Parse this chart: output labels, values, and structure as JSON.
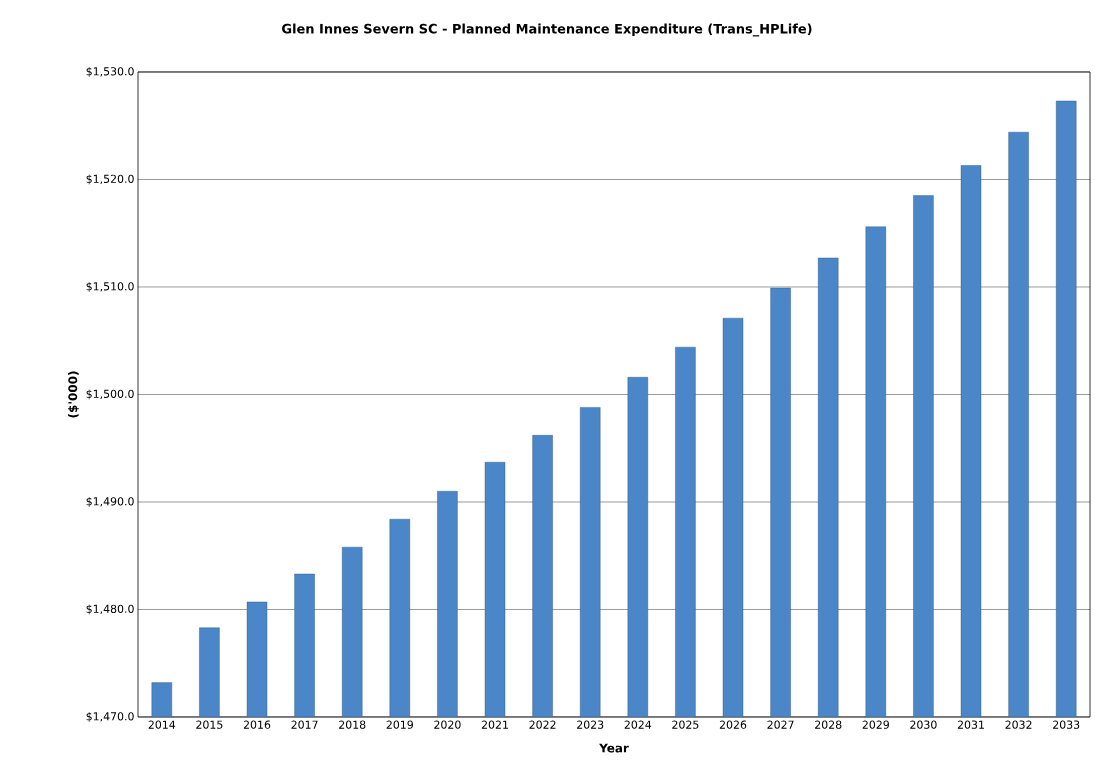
{
  "chart_data": {
    "type": "bar",
    "title": "Glen Innes Severn SC - Planned Maintenance Expenditure (Trans_HPLife)",
    "xlabel": "Year",
    "ylabel": "($'000)",
    "categories": [
      "2014",
      "2015",
      "2016",
      "2017",
      "2018",
      "2019",
      "2020",
      "2021",
      "2022",
      "2023",
      "2024",
      "2025",
      "2026",
      "2027",
      "2028",
      "2029",
      "2030",
      "2031",
      "2032",
      "2033"
    ],
    "values": [
      1473.2,
      1478.3,
      1480.7,
      1483.3,
      1485.8,
      1488.4,
      1491.0,
      1493.7,
      1496.2,
      1498.8,
      1501.6,
      1504.4,
      1507.1,
      1509.9,
      1512.7,
      1515.6,
      1518.5,
      1521.3,
      1524.4,
      1527.3
    ],
    "color": "#4a86c8",
    "ylim": [
      1470,
      1530
    ],
    "yticks": [
      {
        "value": 1470,
        "label": "$1,470.0"
      },
      {
        "value": 1480,
        "label": "$1,480.0"
      },
      {
        "value": 1490,
        "label": "$1,490.0"
      },
      {
        "value": 1500,
        "label": "$1,500.0"
      },
      {
        "value": 1510,
        "label": "$1,510.0"
      },
      {
        "value": 1520,
        "label": "$1,520.0"
      },
      {
        "value": 1530,
        "label": "$1,530.0"
      }
    ],
    "grid": "y"
  }
}
